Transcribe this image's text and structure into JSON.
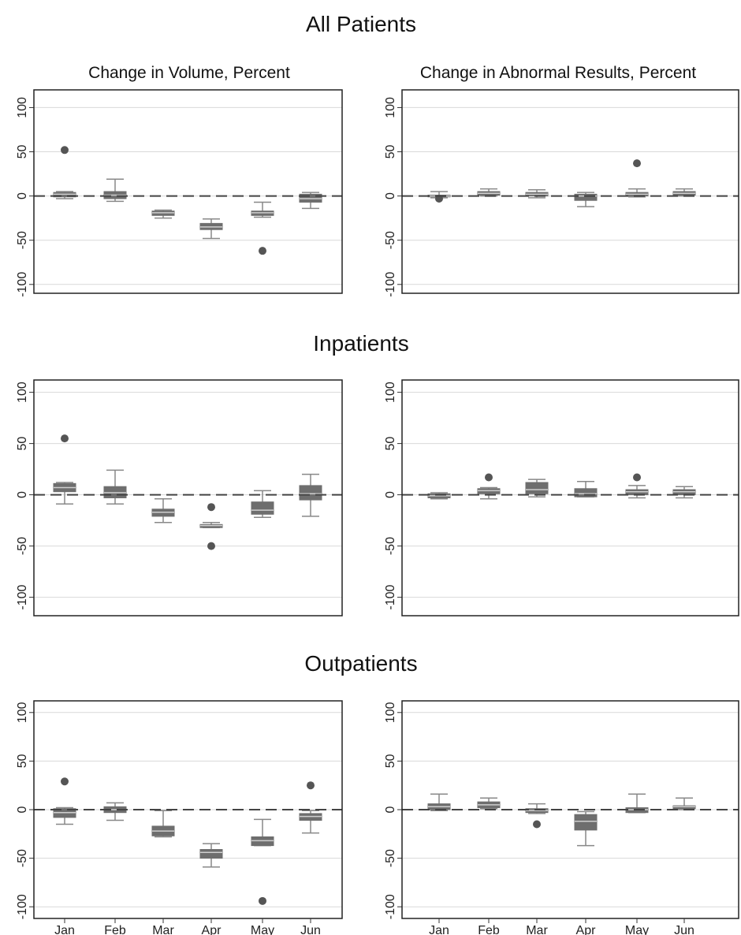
{
  "figure": {
    "sections": [
      "All Patients",
      "Inpatients",
      "Outpatients"
    ],
    "column_titles": [
      "Change in Volume, Percent",
      "Change in Abnormal Results, Percent"
    ]
  },
  "chart_data": [
    {
      "type": "box",
      "section": "All Patients",
      "panel_title": "Change in Volume, Percent",
      "categories": [
        "Jan",
        "Feb",
        "Mar",
        "Apr",
        "May",
        "Jun"
      ],
      "ylim": [
        -110,
        120
      ],
      "yticks": [
        100,
        50,
        0,
        -50,
        -100
      ],
      "reference_line": 0,
      "grid": true,
      "boxes": [
        {
          "lo": -3,
          "q1": -1,
          "med": 2,
          "q3": 4,
          "hi": 5,
          "outliers": [
            52
          ]
        },
        {
          "lo": -6,
          "q1": -3,
          "med": 1,
          "q3": 5,
          "hi": 19,
          "outliers": []
        },
        {
          "lo": -25,
          "q1": -22,
          "med": -19,
          "q3": -17,
          "hi": -16,
          "outliers": []
        },
        {
          "lo": -48,
          "q1": -38,
          "med": -35,
          "q3": -31,
          "hi": -26,
          "outliers": []
        },
        {
          "lo": -24,
          "q1": -22,
          "med": -19,
          "q3": -17,
          "hi": -7,
          "outliers": [
            -62
          ]
        },
        {
          "lo": -14,
          "q1": -7,
          "med": -3,
          "q3": 2,
          "hi": 4,
          "outliers": []
        }
      ]
    },
    {
      "type": "box",
      "section": "All Patients",
      "panel_title": "Change in Abnormal Results, Percent",
      "categories": [
        "Jan",
        "Feb",
        "Mar",
        "Apr",
        "May",
        "Jun"
      ],
      "ylim": [
        -110,
        120
      ],
      "yticks": [
        100,
        50,
        0,
        -50,
        -100
      ],
      "reference_line": 0,
      "grid": true,
      "boxes": [
        {
          "lo": -2,
          "q1": -1,
          "med": 0,
          "q3": 1,
          "hi": 5,
          "outliers": [
            -3
          ]
        },
        {
          "lo": 0,
          "q1": 1,
          "med": 3,
          "q3": 5,
          "hi": 8,
          "outliers": []
        },
        {
          "lo": -2,
          "q1": 0,
          "med": 2,
          "q3": 4,
          "hi": 7,
          "outliers": []
        },
        {
          "lo": -12,
          "q1": -5,
          "med": 0,
          "q3": 2,
          "hi": 4,
          "outliers": []
        },
        {
          "lo": -1,
          "q1": 0,
          "med": 2,
          "q3": 4,
          "hi": 8,
          "outliers": [
            37
          ]
        },
        {
          "lo": 0,
          "q1": 1,
          "med": 3,
          "q3": 5,
          "hi": 8,
          "outliers": []
        }
      ]
    },
    {
      "type": "box",
      "section": "Inpatients",
      "panel_title": "",
      "categories": [
        "Jan",
        "Feb",
        "Mar",
        "Apr",
        "May",
        "Jun"
      ],
      "ylim": [
        -118,
        112
      ],
      "yticks": [
        100,
        50,
        0,
        -50,
        -100
      ],
      "reference_line": 0,
      "grid": true,
      "boxes": [
        {
          "lo": -9,
          "q1": 3,
          "med": 7,
          "q3": 11,
          "hi": 12,
          "outliers": [
            55
          ]
        },
        {
          "lo": -9,
          "q1": -3,
          "med": 2,
          "q3": 8,
          "hi": 24,
          "outliers": []
        },
        {
          "lo": -27,
          "q1": -21,
          "med": -17,
          "q3": -14,
          "hi": -4,
          "outliers": []
        },
        {
          "lo": -32,
          "q1": -32,
          "med": -30,
          "q3": -29,
          "hi": -27,
          "outliers": [
            -12,
            -50
          ]
        },
        {
          "lo": -22,
          "q1": -19,
          "med": -15,
          "q3": -7,
          "hi": 4,
          "outliers": []
        },
        {
          "lo": -21,
          "q1": -5,
          "med": 1,
          "q3": 9,
          "hi": 20,
          "outliers": []
        }
      ]
    },
    {
      "type": "box",
      "section": "Inpatients",
      "panel_title": "",
      "categories": [
        "Jan",
        "Feb",
        "Mar",
        "Apr",
        "May",
        "Jun"
      ],
      "ylim": [
        -118,
        112
      ],
      "yticks": [
        100,
        50,
        0,
        -50,
        -100
      ],
      "reference_line": 0,
      "grid": true,
      "boxes": [
        {
          "lo": -4,
          "q1": -3,
          "med": -1,
          "q3": 1,
          "hi": 2,
          "outliers": []
        },
        {
          "lo": -4,
          "q1": 1,
          "med": 4,
          "q3": 6,
          "hi": 7,
          "outliers": [
            17
          ]
        },
        {
          "lo": -2,
          "q1": 1,
          "med": 5,
          "q3": 12,
          "hi": 15,
          "outliers": []
        },
        {
          "lo": -2,
          "q1": -2,
          "med": 1,
          "q3": 6,
          "hi": 13,
          "outliers": []
        },
        {
          "lo": -3,
          "q1": 0,
          "med": 3,
          "q3": 5,
          "hi": 9,
          "outliers": [
            17
          ]
        },
        {
          "lo": -3,
          "q1": 0,
          "med": 3,
          "q3": 5,
          "hi": 8,
          "outliers": []
        }
      ]
    },
    {
      "type": "box",
      "section": "Outpatients",
      "panel_title": "",
      "categories": [
        "Jan",
        "Feb",
        "Mar",
        "Apr",
        "May",
        "Jun"
      ],
      "ylim": [
        -112,
        112
      ],
      "yticks": [
        100,
        50,
        0,
        -50,
        -100
      ],
      "reference_line": 0,
      "grid": true,
      "boxes": [
        {
          "lo": -15,
          "q1": -8,
          "med": -3,
          "q3": 1,
          "hi": 2,
          "outliers": [
            29
          ]
        },
        {
          "lo": -11,
          "q1": -3,
          "med": 0,
          "q3": 3,
          "hi": 7,
          "outliers": []
        },
        {
          "lo": -28,
          "q1": -27,
          "med": -22,
          "q3": -17,
          "hi": -1,
          "outliers": []
        },
        {
          "lo": -59,
          "q1": -50,
          "med": -44,
          "q3": -41,
          "hi": -35,
          "outliers": []
        },
        {
          "lo": -37,
          "q1": -37,
          "med": -32,
          "q3": -28,
          "hi": -10,
          "outliers": [
            -94
          ]
        },
        {
          "lo": -24,
          "q1": -11,
          "med": -7,
          "q3": -4,
          "hi": -1,
          "outliers": [
            25
          ]
        }
      ]
    },
    {
      "type": "box",
      "section": "Outpatients",
      "panel_title": "",
      "categories": [
        "Jan",
        "Feb",
        "Mar",
        "Apr",
        "May",
        "Jun"
      ],
      "ylim": [
        -112,
        112
      ],
      "yticks": [
        100,
        50,
        0,
        -50,
        -100
      ],
      "reference_line": 0,
      "grid": true,
      "boxes": [
        {
          "lo": -1,
          "q1": 0,
          "med": 3,
          "q3": 6,
          "hi": 16,
          "outliers": []
        },
        {
          "lo": 1,
          "q1": 2,
          "med": 5,
          "q3": 8,
          "hi": 12,
          "outliers": []
        },
        {
          "lo": -4,
          "q1": -3,
          "med": -1,
          "q3": 1,
          "hi": 6,
          "outliers": [
            -15
          ]
        },
        {
          "lo": -37,
          "q1": -21,
          "med": -12,
          "q3": -5,
          "hi": -2,
          "outliers": []
        },
        {
          "lo": -3,
          "q1": -3,
          "med": 0,
          "q3": 2,
          "hi": 16,
          "outliers": []
        },
        {
          "lo": 0,
          "q1": 1,
          "med": 3,
          "q3": 4,
          "hi": 12,
          "outliers": []
        }
      ]
    }
  ]
}
